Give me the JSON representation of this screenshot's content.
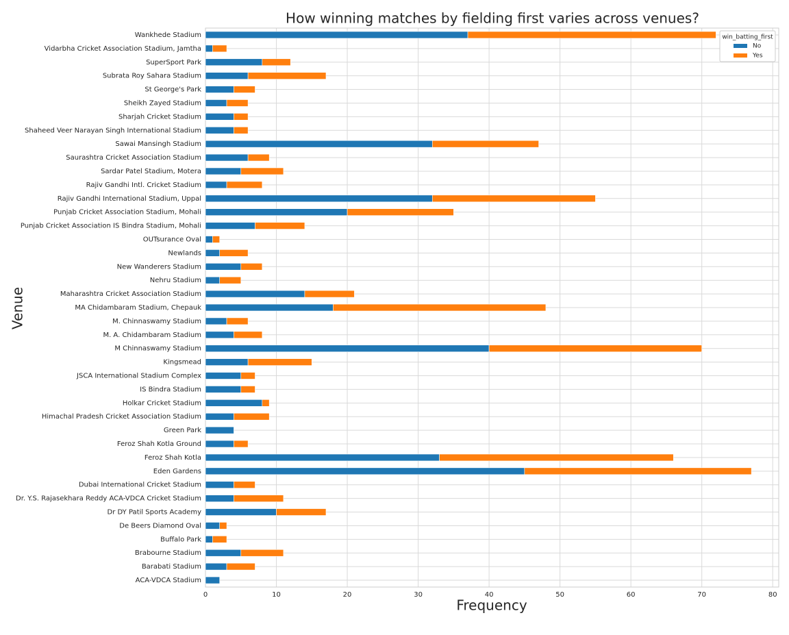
{
  "chart_data": {
    "type": "stacked-barh",
    "title": "How winning matches by fielding first varies across venues?",
    "xlabel": "Frequency",
    "ylabel": "Venue",
    "legend_title": "win_batting_first",
    "legend": "upper right",
    "grid": true,
    "categories": [
      "Wankhede Stadium",
      "Vidarbha Cricket Association Stadium, Jamtha",
      "SuperSport Park",
      "Subrata Roy Sahara Stadium",
      "St George's Park",
      "Sheikh Zayed Stadium",
      "Sharjah Cricket Stadium",
      "Shaheed Veer Narayan Singh International Stadium",
      "Sawai Mansingh Stadium",
      "Saurashtra Cricket Association Stadium",
      "Sardar Patel Stadium, Motera",
      "Rajiv Gandhi Intl. Cricket Stadium",
      "Rajiv Gandhi International Stadium, Uppal",
      "Punjab Cricket Association Stadium, Mohali",
      "Punjab Cricket Association IS Bindra Stadium, Mohali",
      "OUTsurance Oval",
      "Newlands",
      "New Wanderers Stadium",
      "Nehru Stadium",
      "Maharashtra Cricket Association Stadium",
      "MA Chidambaram Stadium, Chepauk",
      "M. Chinnaswamy Stadium",
      "M. A. Chidambaram Stadium",
      "M Chinnaswamy Stadium",
      "Kingsmead",
      "JSCA International Stadium Complex",
      "IS Bindra Stadium",
      "Holkar Cricket Stadium",
      "Himachal Pradesh Cricket Association Stadium",
      "Green Park",
      "Feroz Shah Kotla Ground",
      "Feroz Shah Kotla",
      "Eden Gardens",
      "Dubai International Cricket Stadium",
      "Dr. Y.S. Rajasekhara Reddy ACA-VDCA Cricket Stadium",
      "Dr DY Patil Sports Academy",
      "De Beers Diamond Oval",
      "Buffalo Park",
      "Brabourne Stadium",
      "Barabati Stadium",
      "ACA-VDCA Stadium"
    ],
    "series": [
      {
        "name": "No",
        "color": "#1f77b4",
        "values": [
          37,
          1,
          8,
          6,
          4,
          3,
          4,
          4,
          32,
          6,
          5,
          3,
          32,
          20,
          7,
          1,
          2,
          5,
          2,
          14,
          18,
          3,
          4,
          40,
          6,
          5,
          5,
          8,
          4,
          4,
          4,
          33,
          45,
          4,
          4,
          10,
          2,
          1,
          5,
          3,
          2
        ]
      },
      {
        "name": "Yes",
        "color": "#ff7f0e",
        "values": [
          35,
          2,
          4,
          11,
          3,
          3,
          2,
          2,
          15,
          3,
          6,
          5,
          23,
          15,
          7,
          1,
          4,
          3,
          3,
          7,
          30,
          3,
          4,
          30,
          9,
          2,
          2,
          1,
          5,
          0,
          2,
          33,
          32,
          3,
          7,
          7,
          1,
          2,
          6,
          4,
          0
        ]
      }
    ],
    "xlim": [
      0,
      80.85
    ],
    "xticks": [
      0,
      10,
      20,
      30,
      40,
      50,
      60,
      70,
      80
    ]
  }
}
